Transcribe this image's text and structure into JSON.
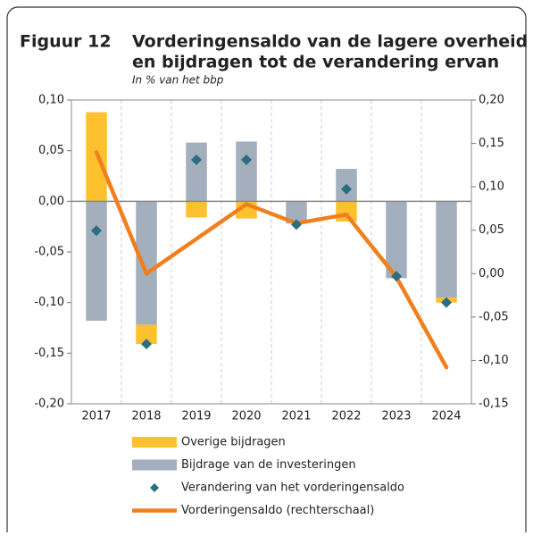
{
  "chart_data": {
    "type": "bar-line",
    "figure_label": "Figuur 12",
    "title_lines": [
      "Vorderingensaldo van de lagere overheid",
      "en bijdragen tot de verandering ervan"
    ],
    "subtitle": "In % van het bbp",
    "categories": [
      "2017",
      "2018",
      "2019",
      "2020",
      "2021",
      "2022",
      "2023",
      "2024"
    ],
    "series": [
      {
        "name": "Overige bijdragen",
        "kind": "bar",
        "color": "#fdc130",
        "values": [
          0.088,
          -0.019,
          -0.016,
          -0.017,
          0,
          -0.02,
          0,
          -0.005
        ]
      },
      {
        "name": "Bijdrage van de investeringen",
        "kind": "bar",
        "color": "#a4afbe",
        "values": [
          -0.118,
          -0.122,
          0.058,
          0.059,
          -0.022,
          0.032,
          -0.076,
          -0.095
        ]
      },
      {
        "name": "Verandering van het vorderingensaldo",
        "kind": "marker",
        "color": "#2b6e7f",
        "values": [
          -0.029,
          -0.141,
          0.041,
          0.041,
          -0.023,
          0.012,
          -0.074,
          -0.1
        ]
      },
      {
        "name": "Vorderingensaldo (rechterschaal)",
        "kind": "line",
        "axis": "y2",
        "color": "#f07f1e",
        "values": [
          0.14,
          0.0,
          0.04,
          0.08,
          0.058,
          0.068,
          -0.004,
          -0.108
        ]
      }
    ],
    "ylim": [
      -0.2,
      0.1
    ],
    "yticks": [
      {
        "value": 0.1,
        "label": "0,10"
      },
      {
        "value": 0.05,
        "label": "0,05"
      },
      {
        "value": 0,
        "label": "0,00"
      },
      {
        "value": -0.05,
        "label": "-0,05"
      },
      {
        "value": -0.1,
        "label": "-0,10"
      },
      {
        "value": -0.15,
        "label": "-0,15"
      },
      {
        "value": -0.2,
        "label": "-0,20"
      }
    ],
    "y2lim": [
      -0.15,
      0.2
    ],
    "y2ticks": [
      {
        "value": 0.2,
        "label": "0,20"
      },
      {
        "value": 0.15,
        "label": "0,15"
      },
      {
        "value": 0.1,
        "label": "0,10"
      },
      {
        "value": 0.05,
        "label": "0,05"
      },
      {
        "value": 0,
        "label": "0,00"
      },
      {
        "value": -0.05,
        "label": "-0,05"
      },
      {
        "value": -0.1,
        "label": "-0,10"
      },
      {
        "value": -0.15,
        "label": "-0,15"
      }
    ]
  }
}
